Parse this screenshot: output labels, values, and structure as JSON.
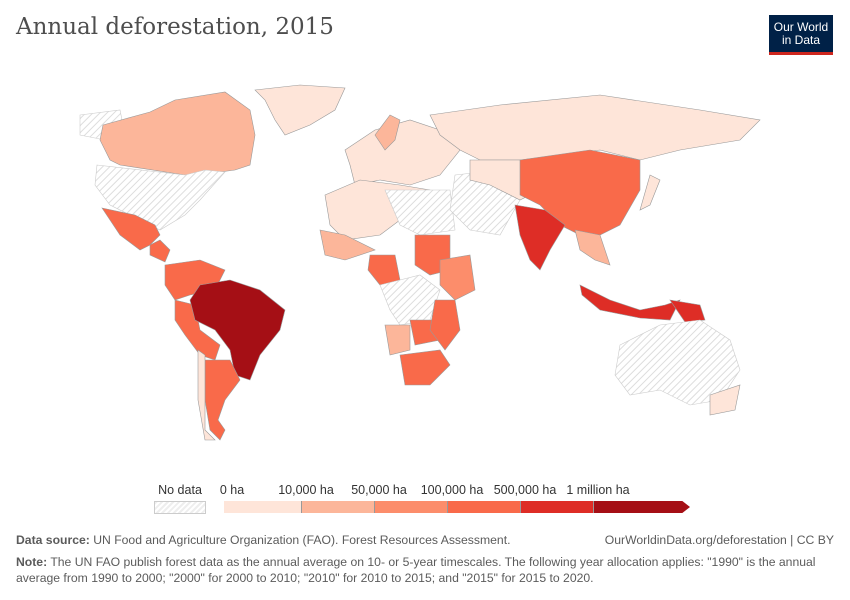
{
  "title": "Annual deforestation, 2015",
  "logo": {
    "line1": "Our World",
    "line2": "in Data"
  },
  "legend": {
    "no_data_label": "No data",
    "labels": [
      "0 ha",
      "10,000 ha",
      "50,000 ha",
      "100,000 ha",
      "500,000 ha",
      "1 million ha"
    ],
    "colors": [
      "#fee5d9",
      "#fcb69a",
      "#fc8d6b",
      "#f96a4a",
      "#de2d26",
      "#a50f15"
    ],
    "no_data_color": "#e8e8e8"
  },
  "regions": [
    {
      "name": "alaska",
      "bin": null
    },
    {
      "name": "canada",
      "bin": 1
    },
    {
      "name": "greenland",
      "bin": 0
    },
    {
      "name": "united-states",
      "bin": null
    },
    {
      "name": "mexico",
      "bin": 3
    },
    {
      "name": "central-america",
      "bin": 3
    },
    {
      "name": "colombia-venezuela",
      "bin": 3
    },
    {
      "name": "peru-bolivia",
      "bin": 3
    },
    {
      "name": "brazil",
      "bin": 5
    },
    {
      "name": "argentina",
      "bin": 3
    },
    {
      "name": "chile",
      "bin": 0
    },
    {
      "name": "europe",
      "bin": 0
    },
    {
      "name": "sweden",
      "bin": 1
    },
    {
      "name": "russia",
      "bin": 0
    },
    {
      "name": "north-africa",
      "bin": 0
    },
    {
      "name": "sahara",
      "bin": null
    },
    {
      "name": "west-africa",
      "bin": 1
    },
    {
      "name": "nigeria",
      "bin": 3
    },
    {
      "name": "sudan",
      "bin": 3
    },
    {
      "name": "east-africa",
      "bin": 2
    },
    {
      "name": "central-africa",
      "bin": null
    },
    {
      "name": "angola",
      "bin": 1
    },
    {
      "name": "zambia",
      "bin": 3
    },
    {
      "name": "tanzania-mozambique",
      "bin": 3
    },
    {
      "name": "south-africa",
      "bin": 3
    },
    {
      "name": "middle-east",
      "bin": null
    },
    {
      "name": "central-asia",
      "bin": 0
    },
    {
      "name": "china",
      "bin": 3
    },
    {
      "name": "india",
      "bin": 4
    },
    {
      "name": "southeast-asia",
      "bin": 1
    },
    {
      "name": "indonesia",
      "bin": 4
    },
    {
      "name": "papua",
      "bin": 4
    },
    {
      "name": "japan",
      "bin": 0
    },
    {
      "name": "australia",
      "bin": null
    },
    {
      "name": "new-zealand",
      "bin": 0
    }
  ],
  "footer": {
    "source_label": "Data source:",
    "source_text": " UN Food and Agriculture Organization (FAO). Forest Resources Assessment.",
    "url_license": "OurWorldinData.org/deforestation | CC BY",
    "note_label": "Note:",
    "note_text": " The UN FAO publish forest data as the annual average on 10- or 5-year timescales. The following year allocation applies: \"1990\" is the annual average from 1990 to 2000; \"2000\" for 2000 to 2010; \"2010\" for 2010 to 2015; and \"2015\" for 2015 to 2020."
  }
}
